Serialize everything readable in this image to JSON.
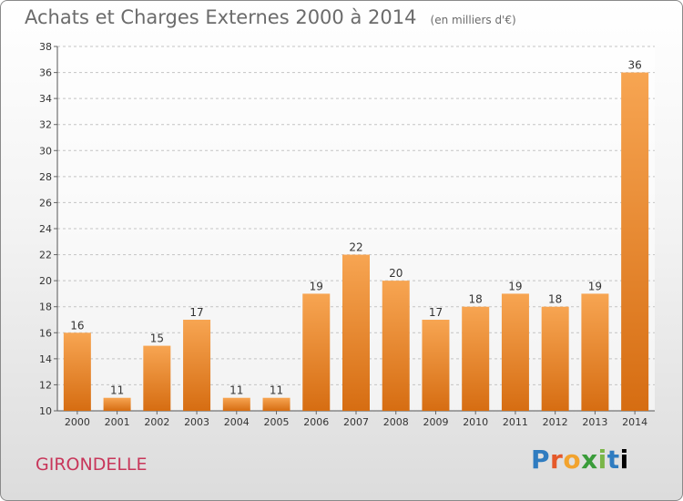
{
  "chart_data": {
    "type": "bar",
    "title": "Achats et Charges Externes 2000 à 2014",
    "subtitle": "(en milliers d'€)",
    "categories": [
      "2000",
      "2001",
      "2002",
      "2003",
      "2004",
      "2005",
      "2006",
      "2007",
      "2008",
      "2009",
      "2010",
      "2011",
      "2012",
      "2013",
      "2014"
    ],
    "values": [
      16,
      11,
      15,
      17,
      11,
      11,
      19,
      22,
      20,
      17,
      18,
      19,
      18,
      19,
      36
    ],
    "ylim": [
      10,
      38
    ],
    "yticks": [
      10,
      12,
      14,
      16,
      18,
      20,
      22,
      24,
      26,
      28,
      30,
      32,
      34,
      36,
      38
    ],
    "grid": true,
    "bar_color_top": "#f7a552",
    "bar_color_bottom": "#d66d12"
  },
  "region_name": "GIRONDELLE",
  "brand_letters": [
    "P",
    "r",
    "o",
    "x",
    "i",
    "t",
    "i"
  ]
}
